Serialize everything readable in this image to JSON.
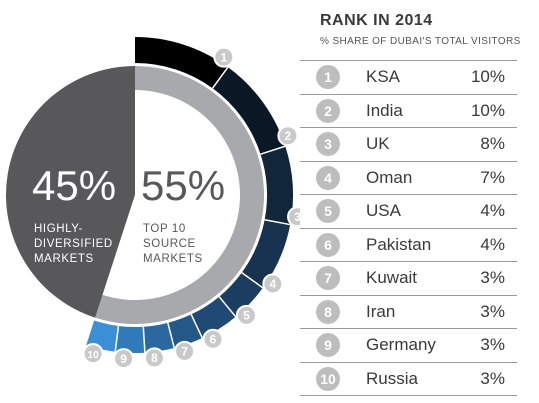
{
  "chart_data": {
    "type": "pie",
    "segments": [
      {
        "value": 45,
        "label": "45%",
        "caption": [
          "HIGHLY-",
          "DIVERSIFIED",
          "MARKETS"
        ],
        "color": "#58585a",
        "label_color": "#ffffff"
      },
      {
        "value": 55,
        "label": "55%",
        "caption": [
          "TOP 10",
          "SOURCE",
          "MARKETS"
        ],
        "color": "#a7a9ac",
        "label_color": "#58585a"
      }
    ],
    "top10_ring": {
      "unit": "%",
      "items": [
        {
          "rank": "1",
          "value": 10,
          "color": "#000000"
        },
        {
          "rank": "2",
          "value": 10,
          "color": "#0a1826"
        },
        {
          "rank": "3",
          "value": 8,
          "color": "#12263a"
        },
        {
          "rank": "4",
          "value": 7,
          "color": "#16324e"
        },
        {
          "rank": "5",
          "value": 4,
          "color": "#1b3e60"
        },
        {
          "rank": "6",
          "value": 4,
          "color": "#204a74"
        },
        {
          "rank": "7",
          "value": 3,
          "color": "#245888"
        },
        {
          "rank": "8",
          "value": 3,
          "color": "#2a689f"
        },
        {
          "rank": "9",
          "value": 3,
          "color": "#2f7bba"
        },
        {
          "rank": "10",
          "value": 3,
          "color": "#3a8fd6"
        }
      ]
    }
  },
  "panel": {
    "title": "RANK IN 2014",
    "subtitle": "% SHARE OF DUBAI'S TOTAL VISITORS",
    "rows": [
      {
        "rank": "1",
        "country": "KSA",
        "share": "10%"
      },
      {
        "rank": "2",
        "country": "India",
        "share": "10%"
      },
      {
        "rank": "3",
        "country": "UK",
        "share": "8%"
      },
      {
        "rank": "4",
        "country": "Oman",
        "share": "7%"
      },
      {
        "rank": "5",
        "country": "USA",
        "share": "4%"
      },
      {
        "rank": "6",
        "country": "Pakistan",
        "share": "4%"
      },
      {
        "rank": "7",
        "country": "Kuwait",
        "share": "3%"
      },
      {
        "rank": "8",
        "country": "Iran",
        "share": "3%"
      },
      {
        "rank": "9",
        "country": "Germany",
        "share": "3%"
      },
      {
        "rank": "10",
        "country": "Russia",
        "share": "3%"
      }
    ]
  }
}
